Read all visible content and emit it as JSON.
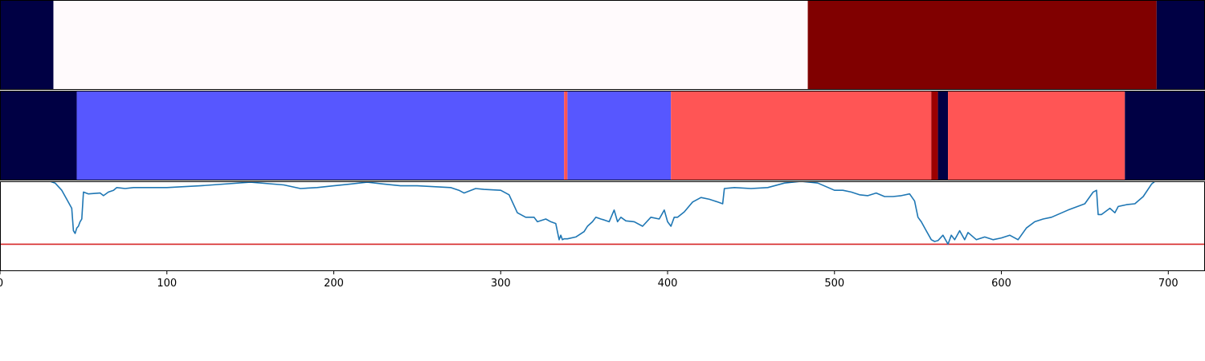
{
  "chart_data": [
    {
      "type": "heatmap",
      "xlim": [
        0,
        722
      ],
      "segments": [
        {
          "x0": 0,
          "x1": 32,
          "color": "#000044"
        },
        {
          "x0": 32,
          "x1": 484,
          "color": "#fffafc"
        },
        {
          "x0": 484,
          "x1": 693,
          "color": "#800000"
        },
        {
          "x0": 693,
          "x1": 722,
          "color": "#000044"
        }
      ]
    },
    {
      "type": "heatmap",
      "xlim": [
        0,
        722
      ],
      "segments": [
        {
          "x0": 0,
          "x1": 46,
          "color": "#000044"
        },
        {
          "x0": 46,
          "x1": 338,
          "color": "#5757ff"
        },
        {
          "x0": 338,
          "x1": 340,
          "color": "#ff5555"
        },
        {
          "x0": 340,
          "x1": 402,
          "color": "#5757ff"
        },
        {
          "x0": 402,
          "x1": 558,
          "color": "#ff5555"
        },
        {
          "x0": 558,
          "x1": 562,
          "color": "#9c0000"
        },
        {
          "x0": 562,
          "x1": 568,
          "color": "#000044"
        },
        {
          "x0": 568,
          "x1": 674,
          "color": "#ff5555"
        },
        {
          "x0": 674,
          "x1": 722,
          "color": "#000044"
        }
      ]
    },
    {
      "type": "line",
      "xlim": [
        0,
        722
      ],
      "ylim": [
        0,
        1
      ],
      "threshold": 0.3,
      "line_color": "#1f77b4",
      "threshold_color": "#d62728",
      "x": [
        0,
        30,
        33,
        37,
        40,
        43,
        44,
        45,
        46,
        47,
        48,
        49,
        50,
        53,
        60,
        62,
        65,
        68,
        70,
        75,
        80,
        100,
        120,
        150,
        170,
        180,
        190,
        200,
        210,
        220,
        230,
        240,
        250,
        260,
        270,
        275,
        278,
        285,
        290,
        300,
        305,
        310,
        315,
        320,
        322,
        327,
        330,
        333,
        335,
        336,
        337,
        338,
        340,
        345,
        350,
        352,
        355,
        357,
        360,
        362,
        365,
        368,
        370,
        372,
        375,
        380,
        385,
        390,
        395,
        398,
        400,
        402,
        404,
        406,
        410,
        415,
        420,
        425,
        430,
        433,
        434,
        440,
        450,
        460,
        470,
        480,
        490,
        500,
        505,
        510,
        515,
        520,
        525,
        530,
        535,
        540,
        545,
        548,
        550,
        552,
        555,
        558,
        560,
        562,
        565,
        568,
        570,
        572,
        575,
        578,
        580,
        585,
        590,
        595,
        600,
        605,
        610,
        615,
        620,
        625,
        630,
        640,
        650,
        655,
        657,
        658,
        660,
        665,
        668,
        670,
        675,
        680,
        685,
        690,
        692,
        700,
        722
      ],
      "y": [
        1.0,
        1.0,
        0.98,
        0.9,
        0.8,
        0.7,
        0.45,
        0.42,
        0.48,
        0.5,
        0.55,
        0.58,
        0.88,
        0.86,
        0.87,
        0.84,
        0.88,
        0.9,
        0.93,
        0.92,
        0.93,
        0.93,
        0.95,
        0.99,
        0.96,
        0.92,
        0.93,
        0.95,
        0.97,
        0.99,
        0.97,
        0.95,
        0.95,
        0.94,
        0.93,
        0.9,
        0.87,
        0.92,
        0.91,
        0.9,
        0.85,
        0.65,
        0.6,
        0.6,
        0.55,
        0.58,
        0.55,
        0.53,
        0.35,
        0.4,
        0.35,
        0.36,
        0.36,
        0.38,
        0.44,
        0.5,
        0.55,
        0.6,
        0.58,
        0.57,
        0.55,
        0.68,
        0.55,
        0.6,
        0.56,
        0.55,
        0.5,
        0.6,
        0.58,
        0.68,
        0.55,
        0.5,
        0.6,
        0.6,
        0.66,
        0.77,
        0.82,
        0.8,
        0.77,
        0.75,
        0.92,
        0.93,
        0.92,
        0.93,
        0.98,
        1.0,
        0.98,
        0.9,
        0.9,
        0.88,
        0.85,
        0.84,
        0.87,
        0.83,
        0.83,
        0.84,
        0.86,
        0.78,
        0.6,
        0.55,
        0.45,
        0.35,
        0.33,
        0.34,
        0.4,
        0.3,
        0.4,
        0.35,
        0.45,
        0.35,
        0.43,
        0.35,
        0.38,
        0.35,
        0.37,
        0.4,
        0.35,
        0.48,
        0.55,
        0.58,
        0.6,
        0.68,
        0.75,
        0.88,
        0.9,
        0.63,
        0.63,
        0.7,
        0.65,
        0.72,
        0.74,
        0.75,
        0.83,
        0.97,
        1.0,
        1.0,
        1.0
      ],
      "x_ticks": [
        "0",
        "100",
        "200",
        "300",
        "400",
        "500",
        "600",
        "700"
      ]
    }
  ]
}
